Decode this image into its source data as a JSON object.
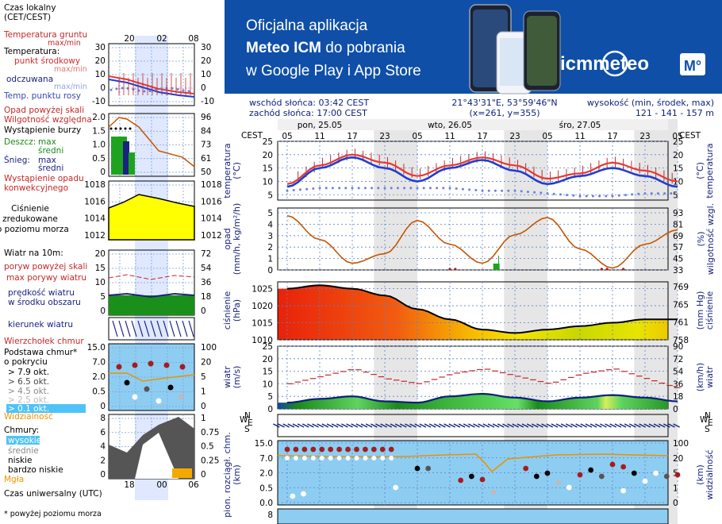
{
  "legend": {
    "time_local": "Czas lokalny\n(CET/CEST)",
    "ground_temp": "Temperatura gruntu",
    "ground_temp_sub": "max/min",
    "temperature": "Temperatura:",
    "mid_point": "punkt środkowy",
    "max_min": "max/min",
    "feels_like": "odczuwana",
    "feels_max_min": "max/min",
    "dew_point": "Temp. punktu rosy",
    "precip_above": "Opad powyżej skali",
    "humidity": "Wilgotność względna",
    "thunder": "Wystąpienie burzy",
    "rain": "Deszcz:",
    "rain_max": "max",
    "rain_mid": "średni",
    "snow": "Śnieg:",
    "snow_max": "max",
    "snow_mid": "średni",
    "convective": "Wystąpienie opadu\nkonwekcyjnego",
    "pressure": "Ciśnienie\nzredukowane\ndo poziomu morza",
    "wind_10m": "Wiatr na 10m:",
    "gust_above": "poryw powyżej skali",
    "max_gust": "max porywy wiatru",
    "wind_speed": "prędkość wiatru\nw środku obszaru",
    "wind_dir": "kierunek wiatru",
    "cloud_top": "Wierzchołek chmur",
    "cloud_base": "Podstawa chmur*\no pokryciu",
    "okt1": "> 7.9 okt.",
    "okt2": "> 6.5 okt.",
    "okt3": "> 4.5 okt.",
    "okt4": "> 2.5 okt.",
    "okt5": "> 0.1 okt.",
    "visibility": "Widzialność",
    "clouds": "Chmury:",
    "high": "wysokie",
    "mid": "średnie",
    "low": "niskie",
    "very_low": "bardzo niskie",
    "fog": "Mgła",
    "utc": "Czas uniwersalny (UTC)",
    "footnote": "* powyżej poziomu morza",
    "mini_top_ticks": [
      "20",
      "02",
      "08"
    ],
    "mini_bottom_ticks": [
      "18",
      "00",
      "06"
    ]
  },
  "banner": {
    "line1": "Oficjalna aplikacja",
    "line2a": "Meteo ICM",
    "line2b": " do pobrania",
    "line3": "w Google Play i App Store",
    "logo": "icmmeteo",
    "badge": "M°",
    "bg": "#0f4fa8"
  },
  "info": {
    "sunrise": "wschód słońca: 03:42 CEST",
    "sunset": "zachód słońca: 17:00 CEST",
    "coords": "21°43'31\"E, 53°59'46\"N",
    "grid": "(x=261,  y=355)",
    "elev_label": "wysokość (min, środek, max)",
    "elev_values": "121 - 141 - 157 m"
  },
  "time_axis": {
    "tz": "CEST",
    "days": [
      "pon, 25.05",
      "wto, 26.05",
      "śro, 27.05"
    ],
    "hours": [
      "05",
      "11",
      "17",
      "23",
      "05",
      "11",
      "17",
      "23",
      "05",
      "11",
      "17",
      "23",
      "05"
    ]
  },
  "panel_labels": {
    "temp_left": "temperatura\n(°C)",
    "temp_right": "(°C)\ntemperatura",
    "precip_left": "opad\n(mm/h, kg/m²/h)",
    "precip_right": "(%)\nwilgotność wzgl.",
    "press_left": "ciśnienie\n(hPa)",
    "press_right": "(mm Hg)\nciśnienie",
    "wind_left": "wiatr\n(m/s)",
    "wind_right": "(km/h)\nwiatr",
    "cloud_left": "pion. rozciągł. chm.\n(km)",
    "cloud_right": "(km)\nwidzialność",
    "wind_dir_label": "W N E S"
  },
  "chart_data": [
    {
      "type": "line",
      "name_key": "temperature",
      "x_hours_from_start": [
        0,
        6,
        12,
        18,
        24,
        30,
        36,
        42,
        48,
        54,
        60,
        66,
        72
      ],
      "series": [
        {
          "values": [
            9,
            16,
            20,
            17,
            12,
            16,
            19,
            16,
            11,
            13,
            17,
            14,
            10
          ]
        },
        {
          "values": [
            8,
            15,
            19,
            15,
            10,
            15,
            18,
            14,
            9,
            12,
            15,
            12,
            8
          ]
        },
        {
          "values": [
            4,
            5,
            5,
            5,
            5,
            5,
            4,
            4,
            3,
            2,
            2,
            3,
            3
          ]
        }
      ],
      "ylim_left": [
        3,
        25
      ],
      "yticks": [
        5,
        10,
        15,
        20,
        25
      ]
    },
    {
      "type": "line",
      "name_key": "humidity",
      "x_hours_from_start": [
        0,
        6,
        12,
        18,
        24,
        30,
        36,
        42,
        48,
        54,
        60,
        66,
        72
      ],
      "humidity_percent": [
        90,
        65,
        40,
        50,
        85,
        60,
        40,
        70,
        88,
        55,
        35,
        60,
        75
      ],
      "yticks_left": [
        0,
        1,
        2,
        3,
        4,
        5
      ],
      "yticks_right": [
        33,
        45,
        57,
        69,
        81,
        93
      ]
    },
    {
      "type": "area",
      "name_key": "pressure",
      "x_hours_from_start": [
        0,
        6,
        12,
        18,
        24,
        30,
        36,
        42,
        48,
        54,
        60,
        66,
        72
      ],
      "values": [
        1025,
        1026,
        1025,
        1023,
        1019,
        1016,
        1013,
        1012,
        1013,
        1014,
        1015,
        1016,
        1016
      ],
      "ylim": [
        1010,
        1027
      ],
      "yticks": [
        1010,
        1015,
        1020,
        1025
      ],
      "yticks_right": [
        758,
        761,
        765,
        769
      ]
    },
    {
      "type": "area",
      "name_key": "wind",
      "x_hours_from_start": [
        0,
        6,
        12,
        18,
        24,
        30,
        36,
        42,
        48,
        54,
        60,
        66,
        72
      ],
      "speed": [
        2.5,
        4,
        5,
        3,
        2.5,
        5,
        6,
        4.5,
        3,
        4.5,
        5.5,
        4.5,
        3
      ],
      "gust": [
        10,
        13,
        16,
        12,
        10,
        14,
        16,
        13,
        10,
        14,
        16,
        12,
        8
      ],
      "ylim": [
        0,
        25
      ],
      "yticks": [
        0,
        5,
        10,
        15,
        20,
        25
      ],
      "yticks_right": [
        0,
        18,
        36,
        54,
        72,
        90
      ]
    },
    {
      "type": "scatter",
      "name_key": "cloud",
      "yticks": [
        "15.0",
        "7.0",
        "2.0",
        "0.5",
        "0.0"
      ],
      "yticks_right": [
        "100",
        "20",
        "5",
        "1",
        "0"
      ]
    }
  ],
  "mini_scales": {
    "temp_left": [
      "30",
      "20",
      "10",
      "0",
      "-10"
    ],
    "temp_right": [
      "30",
      "20",
      "10",
      "0",
      "-10"
    ],
    "precip_left": [
      "2.0",
      "1.5",
      "1.0",
      "0.5",
      "0"
    ],
    "precip_right": [
      "96",
      "84",
      "73",
      "61",
      "50"
    ],
    "press_left": [
      "1018",
      "1016",
      "1014",
      "1012"
    ],
    "press_right": [
      "1018",
      "1016",
      "1014",
      "1012"
    ],
    "wind_left": [
      "20",
      "15",
      "10",
      "5",
      "0"
    ],
    "wind_right": [
      "72",
      "54",
      "36",
      "18",
      "0"
    ],
    "cloud_left": [
      "15.0",
      "7.0",
      "2.0",
      "0.5",
      "0"
    ],
    "cloud_right": [
      "100",
      "20",
      "5",
      "1",
      "0"
    ],
    "vis_left": [
      "8",
      "6",
      "4",
      "2",
      "0"
    ],
    "vis_right": [
      "1",
      "0.75",
      "0.5",
      "0.25",
      "0"
    ]
  }
}
